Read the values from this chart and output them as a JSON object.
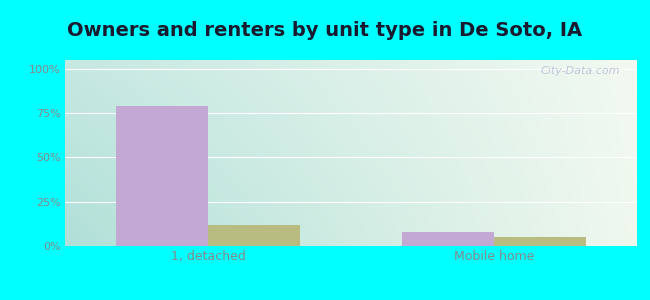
{
  "title": "Owners and renters by unit type in De Soto, IA",
  "categories": [
    "1, detached",
    "Mobile home"
  ],
  "owner_values": [
    79,
    8
  ],
  "renter_values": [
    12,
    5
  ],
  "owner_color": "#c4a8d4",
  "renter_color": "#b8bc80",
  "bg_colors": [
    "#b8eae0",
    "#c8ecd8",
    "#dff2e0",
    "#f0f8ee",
    "#f5faf0"
  ],
  "yticks": [
    0,
    25,
    50,
    75,
    100
  ],
  "ylabels": [
    "0%",
    "25%",
    "50%",
    "75%",
    "100%"
  ],
  "ylim": [
    0,
    105
  ],
  "bar_width": 0.32,
  "watermark": "City-Data.com",
  "outer_bg": "#00ffff",
  "title_fontsize": 14,
  "grid_color": "#ffffff",
  "tick_color": "#888888"
}
